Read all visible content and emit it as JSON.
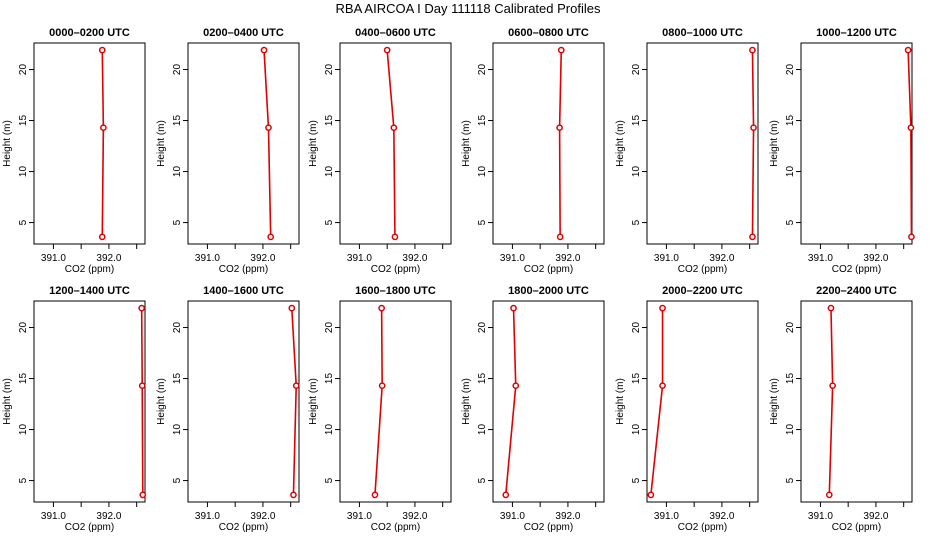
{
  "figure": {
    "title": "RBA AIRCOA I  Day 111118  Calibrated Profiles"
  },
  "chart_data": {
    "type": "line",
    "xlabel": "CO2 (ppm)",
    "ylabel": "Height (m)",
    "xlim": [
      390.65,
      392.65
    ],
    "ylim": [
      2.9,
      22.6
    ],
    "xticks": [
      391.0,
      391.5,
      392.0,
      392.5
    ],
    "xtick_labels": [
      "391.0",
      "",
      "392.0",
      ""
    ],
    "yticks": [
      5,
      10,
      15,
      20
    ],
    "ytick_labels": [
      "5",
      "10",
      "15",
      "20"
    ],
    "line_color": "#e00000",
    "panels": [
      {
        "title": "0000–0200 UTC",
        "height": [
          3.6,
          14.3,
          21.9
        ],
        "co2": [
          391.88,
          391.9,
          391.88
        ]
      },
      {
        "title": "0200–0400 UTC",
        "height": [
          3.6,
          14.3,
          21.9
        ],
        "co2": [
          392.14,
          392.1,
          392.02
        ]
      },
      {
        "title": "0400–0600 UTC",
        "height": [
          3.6,
          14.3,
          21.9
        ],
        "co2": [
          391.64,
          391.62,
          391.5
        ]
      },
      {
        "title": "0600–0800 UTC",
        "height": [
          3.6,
          14.3,
          21.9
        ],
        "co2": [
          391.86,
          391.85,
          391.88
        ]
      },
      {
        "title": "0800–1000 UTC",
        "height": [
          3.6,
          14.3,
          21.9
        ],
        "co2": [
          392.55,
          392.57,
          392.55
        ]
      },
      {
        "title": "1000–1200 UTC",
        "height": [
          3.6,
          14.3,
          21.9
        ],
        "co2": [
          392.64,
          392.63,
          392.58
        ]
      },
      {
        "title": "1200–1400 UTC",
        "height": [
          3.6,
          14.3,
          21.9
        ],
        "co2": [
          392.61,
          392.6,
          392.59
        ]
      },
      {
        "title": "1400–1600 UTC",
        "height": [
          3.6,
          14.3,
          21.9
        ],
        "co2": [
          392.55,
          392.6,
          392.52
        ]
      },
      {
        "title": "1600–1800 UTC",
        "height": [
          3.6,
          14.3,
          21.9
        ],
        "co2": [
          391.28,
          391.41,
          391.4
        ]
      },
      {
        "title": "1800–2000 UTC",
        "height": [
          3.6,
          14.3,
          21.9
        ],
        "co2": [
          390.88,
          391.06,
          391.02
        ]
      },
      {
        "title": "2000–2200 UTC",
        "height": [
          3.6,
          14.3,
          21.9
        ],
        "co2": [
          390.72,
          390.93,
          390.93
        ]
      },
      {
        "title": "2200–2400 UTC",
        "height": [
          3.6,
          14.3,
          21.9
        ],
        "co2": [
          391.16,
          391.22,
          391.19
        ]
      }
    ]
  }
}
